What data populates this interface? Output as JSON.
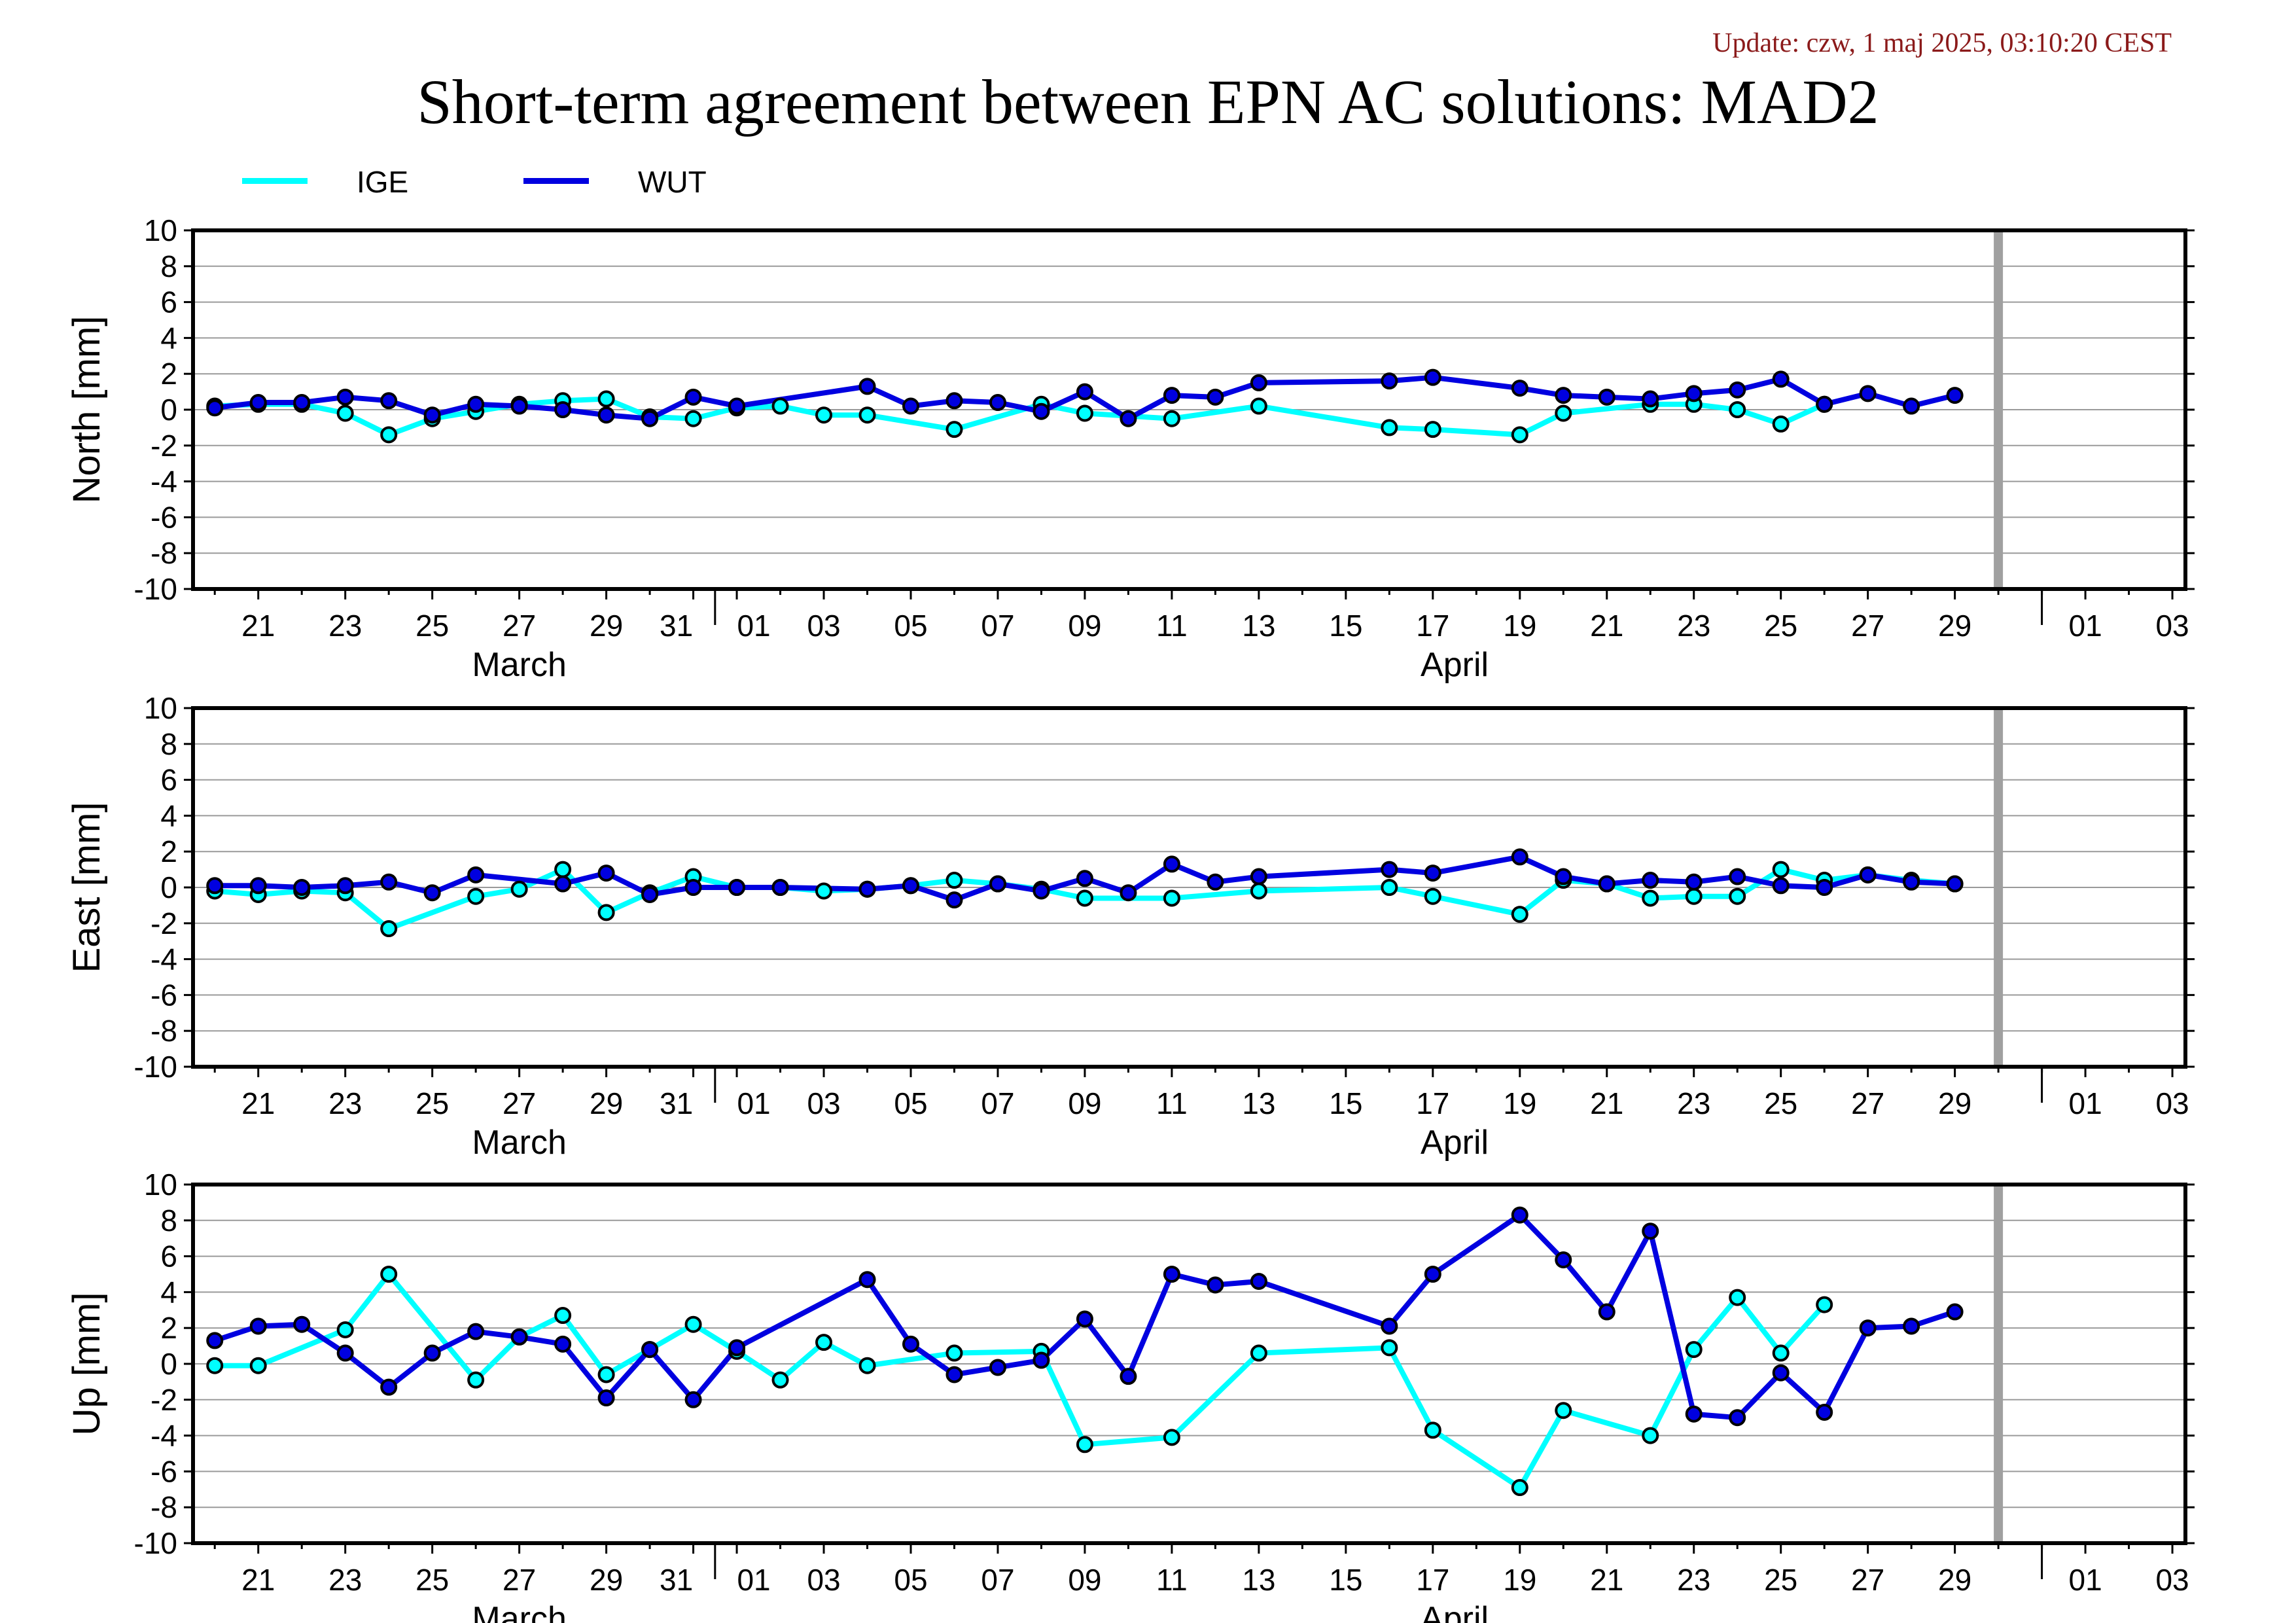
{
  "update_text": "Update: czw, 1 maj 2025, 03:10:20 CEST",
  "title": "Short-term agreement between EPN AC solutions: MAD2",
  "legend": [
    {
      "label": "IGE",
      "color": "#00ffff"
    },
    {
      "label": "WUT",
      "color": "#0000e0"
    }
  ],
  "chart_data": [
    {
      "type": "line",
      "ylabel": "North [mm]",
      "ylim": [
        -10,
        10
      ],
      "y_ticks": [
        "10",
        "8",
        "6",
        "4",
        "2",
        "0",
        "-2",
        "-4",
        "-6",
        "-8",
        "-10"
      ],
      "x_ticks": [
        "21",
        "23",
        "25",
        "27",
        "29",
        "31",
        "01",
        "03",
        "05",
        "07",
        "09",
        "11",
        "13",
        "15",
        "17",
        "19",
        "21",
        "23",
        "25",
        "27",
        "29",
        "01",
        "03"
      ],
      "months": [
        "March",
        "April"
      ],
      "grid": true,
      "series": [
        {
          "name": "IGE",
          "color": "#00ffff",
          "points": [
            [
              20,
              0.2
            ],
            [
              21,
              0.3
            ],
            [
              22,
              0.3
            ],
            [
              23,
              -0.2
            ],
            [
              24,
              -1.4
            ],
            [
              25,
              -0.5
            ],
            [
              26,
              -0.1
            ],
            [
              27,
              0.3
            ],
            [
              28,
              0.5
            ],
            [
              29,
              0.6
            ],
            [
              30,
              -0.4
            ],
            [
              31,
              -0.5
            ],
            [
              32,
              0.1
            ],
            [
              33,
              0.2
            ],
            [
              34,
              -0.3
            ],
            [
              35,
              -0.3
            ],
            [
              37,
              -1.1
            ],
            [
              39,
              0.3
            ],
            [
              40,
              -0.2
            ],
            [
              42,
              -0.5
            ],
            [
              44,
              0.2
            ],
            [
              47,
              -1.0
            ],
            [
              48,
              -1.1
            ],
            [
              50,
              -1.4
            ],
            [
              51,
              -0.2
            ],
            [
              53,
              0.3
            ],
            [
              54,
              0.3
            ],
            [
              55,
              0.0
            ],
            [
              56,
              -0.8
            ],
            [
              57,
              0.3
            ]
          ]
        },
        {
          "name": "WUT",
          "color": "#0000e0",
          "points": [
            [
              20,
              0.1
            ],
            [
              21,
              0.4
            ],
            [
              22,
              0.4
            ],
            [
              23,
              0.7
            ],
            [
              24,
              0.5
            ],
            [
              25,
              -0.3
            ],
            [
              26,
              0.3
            ],
            [
              27,
              0.2
            ],
            [
              28,
              0.0
            ],
            [
              29,
              -0.3
            ],
            [
              30,
              -0.5
            ],
            [
              31,
              0.7
            ],
            [
              32,
              0.2
            ],
            [
              35,
              1.3
            ],
            [
              36,
              0.2
            ],
            [
              37,
              0.5
            ],
            [
              38,
              0.4
            ],
            [
              39,
              -0.1
            ],
            [
              40,
              1.0
            ],
            [
              41,
              -0.5
            ],
            [
              42,
              0.8
            ],
            [
              43,
              0.7
            ],
            [
              44,
              1.5
            ],
            [
              47,
              1.6
            ],
            [
              48,
              1.8
            ],
            [
              50,
              1.2
            ],
            [
              51,
              0.8
            ],
            [
              52,
              0.7
            ],
            [
              53,
              0.6
            ],
            [
              54,
              0.9
            ],
            [
              55,
              1.1
            ],
            [
              56,
              1.7
            ],
            [
              57,
              0.3
            ],
            [
              58,
              0.9
            ],
            [
              59,
              0.2
            ],
            [
              60,
              0.8
            ]
          ]
        }
      ]
    },
    {
      "type": "line",
      "ylabel": "East [mm]",
      "ylim": [
        -10,
        10
      ],
      "y_ticks": [
        "10",
        "8",
        "6",
        "4",
        "2",
        "0",
        "-2",
        "-4",
        "-6",
        "-8",
        "-10"
      ],
      "x_ticks": [
        "21",
        "23",
        "25",
        "27",
        "29",
        "31",
        "01",
        "03",
        "05",
        "07",
        "09",
        "11",
        "13",
        "15",
        "17",
        "19",
        "21",
        "23",
        "25",
        "27",
        "29",
        "01",
        "03"
      ],
      "months": [
        "March",
        "April"
      ],
      "grid": true,
      "series": [
        {
          "name": "IGE",
          "color": "#00ffff",
          "points": [
            [
              20,
              -0.2
            ],
            [
              21,
              -0.4
            ],
            [
              22,
              -0.2
            ],
            [
              23,
              -0.3
            ],
            [
              24,
              -2.3
            ],
            [
              26,
              -0.5
            ],
            [
              27,
              -0.1
            ],
            [
              28,
              1.0
            ],
            [
              29,
              -1.4
            ],
            [
              30,
              -0.3
            ],
            [
              31,
              0.6
            ],
            [
              32,
              0.0
            ],
            [
              33,
              0.0
            ],
            [
              34,
              -0.2
            ],
            [
              35,
              -0.1
            ],
            [
              36,
              0.1
            ],
            [
              37,
              0.4
            ],
            [
              38,
              0.2
            ],
            [
              39,
              -0.1
            ],
            [
              40,
              -0.6
            ],
            [
              42,
              -0.6
            ],
            [
              44,
              -0.2
            ],
            [
              47,
              0.0
            ],
            [
              48,
              -0.5
            ],
            [
              50,
              -1.5
            ],
            [
              51,
              0.4
            ],
            [
              52,
              0.2
            ],
            [
              53,
              -0.6
            ],
            [
              54,
              -0.5
            ],
            [
              55,
              -0.5
            ],
            [
              56,
              1.0
            ],
            [
              57,
              0.4
            ],
            [
              58,
              0.7
            ],
            [
              59,
              0.4
            ],
            [
              60,
              0.2
            ]
          ]
        },
        {
          "name": "WUT",
          "color": "#0000e0",
          "points": [
            [
              20,
              0.1
            ],
            [
              21,
              0.1
            ],
            [
              22,
              0.0
            ],
            [
              23,
              0.1
            ],
            [
              24,
              0.3
            ],
            [
              25,
              -0.3
            ],
            [
              26,
              0.7
            ],
            [
              28,
              0.2
            ],
            [
              29,
              0.8
            ],
            [
              30,
              -0.4
            ],
            [
              31,
              0.0
            ],
            [
              32,
              0.0
            ],
            [
              33,
              0.0
            ],
            [
              35,
              -0.1
            ],
            [
              36,
              0.1
            ],
            [
              37,
              -0.7
            ],
            [
              38,
              0.2
            ],
            [
              39,
              -0.2
            ],
            [
              40,
              0.5
            ],
            [
              41,
              -0.3
            ],
            [
              42,
              1.3
            ],
            [
              43,
              0.3
            ],
            [
              44,
              0.6
            ],
            [
              47,
              1.0
            ],
            [
              48,
              0.8
            ],
            [
              50,
              1.7
            ],
            [
              51,
              0.6
            ],
            [
              52,
              0.2
            ],
            [
              53,
              0.4
            ],
            [
              54,
              0.3
            ],
            [
              55,
              0.6
            ],
            [
              56,
              0.1
            ],
            [
              57,
              0.0
            ],
            [
              58,
              0.7
            ],
            [
              59,
              0.3
            ],
            [
              60,
              0.2
            ]
          ]
        }
      ]
    },
    {
      "type": "line",
      "ylabel": "Up [mm]",
      "ylim": [
        -10,
        10
      ],
      "y_ticks": [
        "10",
        "8",
        "6",
        "4",
        "2",
        "0",
        "-2",
        "-4",
        "-6",
        "-8",
        "-10"
      ],
      "x_ticks": [
        "21",
        "23",
        "25",
        "27",
        "29",
        "31",
        "01",
        "03",
        "05",
        "07",
        "09",
        "11",
        "13",
        "15",
        "17",
        "19",
        "21",
        "23",
        "25",
        "27",
        "29",
        "01",
        "03"
      ],
      "months": [
        "March",
        "April"
      ],
      "grid": true,
      "series": [
        {
          "name": "IGE",
          "color": "#00ffff",
          "points": [
            [
              20,
              -0.1
            ],
            [
              21,
              -0.1
            ],
            [
              23,
              1.9
            ],
            [
              24,
              5.0
            ],
            [
              26,
              -0.9
            ],
            [
              27,
              1.5
            ],
            [
              28,
              2.7
            ],
            [
              29,
              -0.6
            ],
            [
              30,
              0.8
            ],
            [
              31,
              2.2
            ],
            [
              32,
              0.7
            ],
            [
              33,
              -0.9
            ],
            [
              34,
              1.2
            ],
            [
              35,
              -0.1
            ],
            [
              37,
              0.6
            ],
            [
              39,
              0.7
            ],
            [
              40,
              -4.5
            ],
            [
              42,
              -4.1
            ],
            [
              44,
              0.6
            ],
            [
              47,
              0.9
            ],
            [
              48,
              -3.7
            ],
            [
              50,
              -6.9
            ],
            [
              51,
              -2.6
            ],
            [
              53,
              -4.0
            ],
            [
              54,
              0.8
            ],
            [
              55,
              3.7
            ],
            [
              56,
              0.6
            ],
            [
              57,
              3.3
            ]
          ]
        },
        {
          "name": "WUT",
          "color": "#0000e0",
          "points": [
            [
              20,
              1.3
            ],
            [
              21,
              2.1
            ],
            [
              22,
              2.2
            ],
            [
              23,
              0.6
            ],
            [
              24,
              -1.3
            ],
            [
              25,
              0.6
            ],
            [
              26,
              1.8
            ],
            [
              27,
              1.5
            ],
            [
              28,
              1.1
            ],
            [
              29,
              -1.9
            ],
            [
              30,
              0.8
            ],
            [
              31,
              -2.0
            ],
            [
              32,
              0.9
            ],
            [
              35,
              4.7
            ],
            [
              36,
              1.1
            ],
            [
              37,
              -0.6
            ],
            [
              38,
              -0.2
            ],
            [
              39,
              0.2
            ],
            [
              40,
              2.5
            ],
            [
              41,
              -0.7
            ],
            [
              42,
              5.0
            ],
            [
              43,
              4.4
            ],
            [
              44,
              4.6
            ],
            [
              47,
              2.1
            ],
            [
              48,
              5.0
            ],
            [
              50,
              8.3
            ],
            [
              51,
              5.8
            ],
            [
              52,
              2.9
            ],
            [
              53,
              7.4
            ],
            [
              54,
              -2.8
            ],
            [
              55,
              -3.0
            ],
            [
              56,
              -0.5
            ],
            [
              57,
              -2.7
            ],
            [
              58,
              2.0
            ],
            [
              59,
              2.1
            ],
            [
              60,
              2.9
            ]
          ]
        }
      ]
    }
  ]
}
